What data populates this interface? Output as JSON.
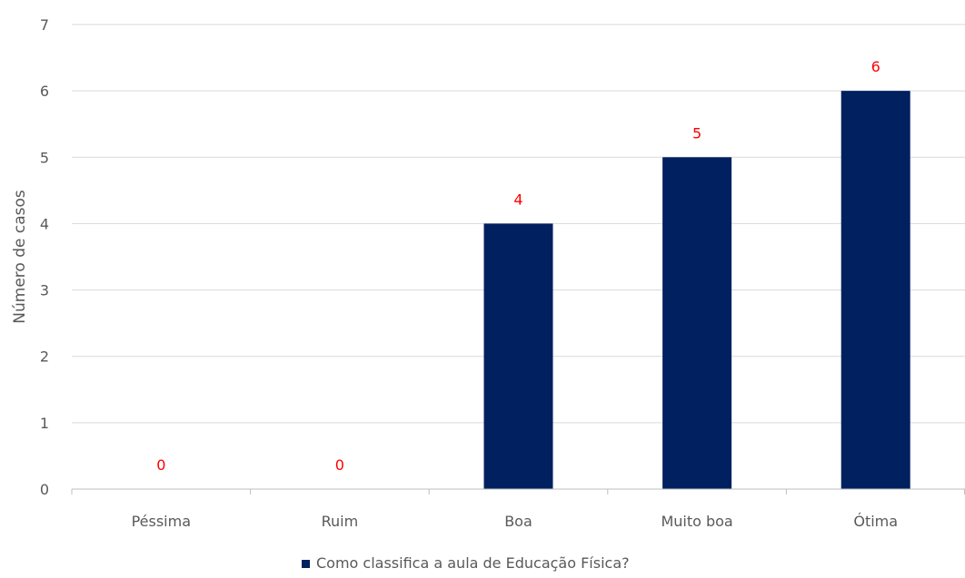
{
  "chart_data": {
    "type": "bar",
    "title": "",
    "xlabel": "",
    "ylabel": "Número de casos",
    "categories": [
      "Péssima",
      "Ruim",
      "Boa",
      "Muito boa",
      "Ótima"
    ],
    "series": [
      {
        "name": "Como classifica a aula de Educação Física?",
        "values": [
          0,
          0,
          4,
          5,
          6
        ],
        "color": "#002060"
      }
    ],
    "data_labels": [
      "0",
      "0",
      "4",
      "5",
      "6"
    ],
    "data_label_color": "#ff0000",
    "ylim": [
      0,
      7
    ],
    "yticks": [
      0,
      1,
      2,
      3,
      4,
      5,
      6,
      7
    ],
    "ytick_labels": [
      "0",
      "1",
      "2",
      "3",
      "4",
      "5",
      "6",
      "7"
    ],
    "grid": true,
    "gridline_color": "#d9d9d9",
    "legend": "bottom-center"
  }
}
